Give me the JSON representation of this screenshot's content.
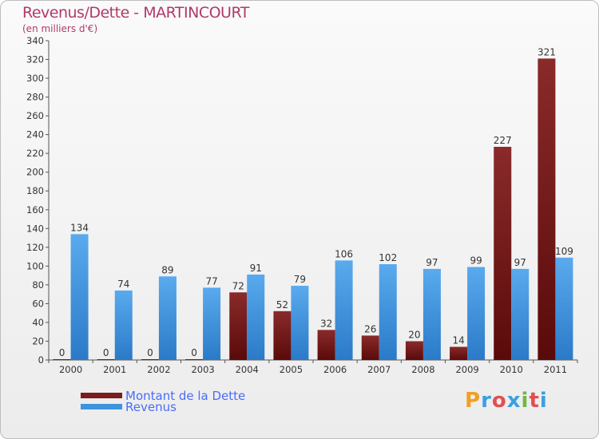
{
  "chart_data": {
    "type": "bar",
    "title": "Revenus/Dette - MARTINCOURT",
    "subtitle": "(en milliers d'€)",
    "xlabel": "",
    "ylabel": "",
    "ylim": [
      0,
      340
    ],
    "yticks": [
      0,
      20,
      40,
      60,
      80,
      100,
      120,
      140,
      160,
      180,
      200,
      220,
      240,
      260,
      280,
      300,
      320,
      340
    ],
    "categories": [
      "2000",
      "2001",
      "2002",
      "2003",
      "2004",
      "2005",
      "2006",
      "2007",
      "2008",
      "2009",
      "2010",
      "2011"
    ],
    "series": [
      {
        "name": "Montant de la Dette",
        "color": "#7a1c1c",
        "values": [
          0,
          0,
          0,
          0,
          72,
          52,
          32,
          26,
          20,
          14,
          227,
          321
        ]
      },
      {
        "name": "Revenus",
        "color": "#3d93dc",
        "values": [
          134,
          74,
          89,
          77,
          91,
          79,
          106,
          102,
          97,
          99,
          97,
          109
        ]
      }
    ],
    "grid": false,
    "legend_position": "bottom-left"
  },
  "logo": {
    "letters": [
      "P",
      "r",
      "o",
      "x",
      "i",
      "t",
      "i"
    ],
    "colors": [
      "#f0a020",
      "#3aa0e0",
      "#e05050",
      "#3aa0e0",
      "#70b840",
      "#e05050",
      "#3aa0e0"
    ]
  }
}
